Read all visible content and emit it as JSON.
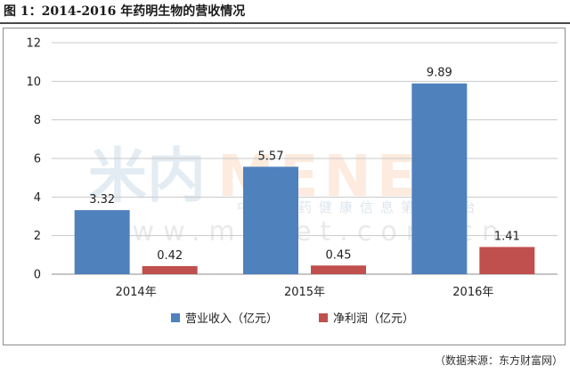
{
  "caption": "图 1：2014-2016 年药明生物的营收情况",
  "source": "（数据来源：东方财富网）",
  "watermark": {
    "logo_cn": "米内",
    "logo_en": "MENET",
    "tagline": "中国医药健康信息第一平台",
    "url": "www.menet.com.cn"
  },
  "chart_data": {
    "type": "bar",
    "categories": [
      "2014年",
      "2015年",
      "2016年"
    ],
    "series": [
      {
        "name": "营业收入（亿元）",
        "values": [
          3.32,
          5.57,
          9.89
        ],
        "color": "#4f81bd"
      },
      {
        "name": "净利润（亿元）",
        "values": [
          0.42,
          0.45,
          1.41
        ],
        "color": "#c0504d"
      }
    ],
    "ylim": [
      0,
      12
    ],
    "yticks": [
      0,
      2,
      4,
      6,
      8,
      10,
      12
    ],
    "grid": true,
    "legend_position": "bottom",
    "data_labels": true
  }
}
